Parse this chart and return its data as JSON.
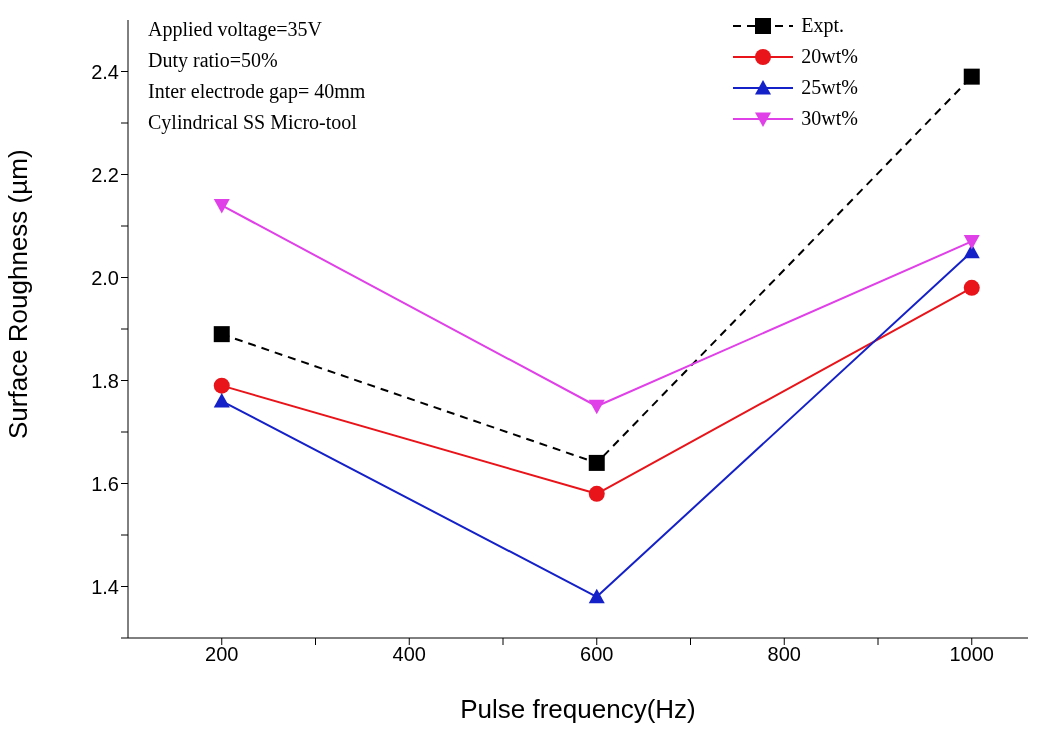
{
  "chart_data": {
    "type": "line",
    "xlabel": "Pulse frequency(Hz)",
    "ylabel": "Surface Roughness (µm)",
    "annotations": [
      "Applied voltage=35V",
      "Duty ratio=50%",
      "Inter electrode gap= 40mm",
      "Cylindrical SS Micro-tool"
    ],
    "x": [
      200,
      600,
      1000
    ],
    "series": [
      {
        "name": "Expt.",
        "color": "#000000",
        "values": [
          1.89,
          1.64,
          2.39
        ],
        "marker": "square",
        "line_style": "dashed"
      },
      {
        "name": "20wt%",
        "color": "#e8141a",
        "values": [
          1.79,
          1.58,
          1.98
        ],
        "marker": "circle",
        "line_style": "solid"
      },
      {
        "name": "25wt%",
        "color": "#1420c8",
        "values": [
          1.76,
          1.38,
          2.05
        ],
        "marker": "triangle",
        "line_style": "solid"
      },
      {
        "name": "30wt%",
        "color": "#e040e8",
        "values": [
          2.14,
          1.75,
          2.07
        ],
        "marker": "triangle_down",
        "line_style": "solid"
      }
    ],
    "xlim": [
      100,
      1060
    ],
    "xticks": [
      200,
      {
        "value": 300,
        "label": null
      },
      400,
      {
        "value": 500,
        "label": null
      },
      600,
      {
        "value": 700,
        "label": null
      },
      800,
      {
        "value": 900,
        "label": null
      },
      1000
    ],
    "ylim": [
      1.3,
      2.5
    ],
    "yticks": [
      {
        "value": 1.3,
        "label": null
      },
      1.4,
      {
        "value": 1.5,
        "label": null
      },
      1.6,
      {
        "value": 1.7,
        "label": null
      },
      1.8,
      {
        "value": 1.9,
        "label": null
      },
      {
        "value": 2,
        "label": "2.0"
      },
      {
        "value": 2.1,
        "label": null
      },
      2.2,
      {
        "value": 2.3,
        "label": null
      },
      2.4
    ],
    "legend": "top right",
    "grid": false
  }
}
